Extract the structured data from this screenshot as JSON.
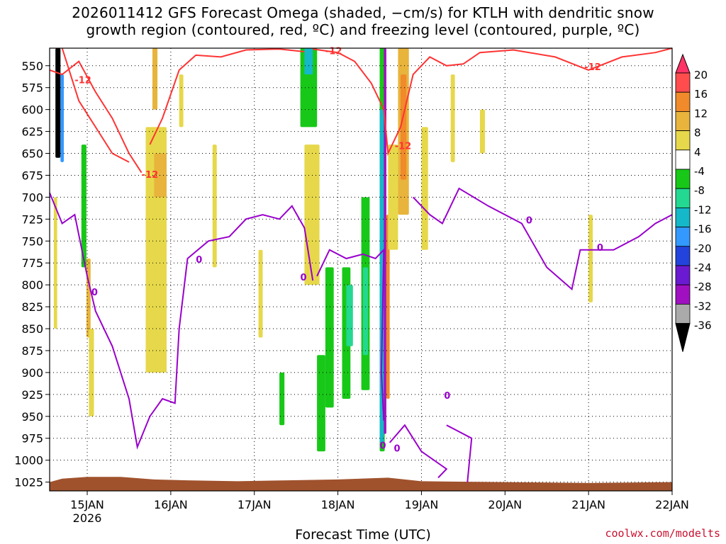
{
  "title_line1": "2026011412 GFS Forecast Omega (shaded, −cm/s) for KTLH with dendritic snow",
  "title_line2": "growth region (contoured, red, ºC) and freezing level (contoured, purple, ºC)",
  "credit": "coolwx.com/modelts",
  "colors": {
    "dendritic_contour": "#ff3333",
    "freezing_contour": "#9900cc",
    "ground": "#a0522d"
  },
  "chart_data": {
    "type": "heatmap",
    "xlabel": "Forecast Time (UTC)",
    "ylabel": "",
    "x_ticks": [
      "15JAN",
      "16JAN",
      "17JAN",
      "18JAN",
      "19JAN",
      "20JAN",
      "21JAN",
      "22JAN"
    ],
    "x_year_label": "2026",
    "y_ticks": [
      550,
      575,
      600,
      625,
      650,
      675,
      700,
      725,
      750,
      775,
      800,
      825,
      850,
      875,
      900,
      925,
      950,
      975,
      1000,
      1025
    ],
    "ylim": [
      530,
      1035
    ],
    "grid": true,
    "colorbar": {
      "levels": [
        20,
        16,
        12,
        8,
        4,
        -4,
        -8,
        -12,
        -16,
        -20,
        -24,
        -28,
        -32,
        -36
      ],
      "colors": [
        "#ff3366",
        "#ff4d4d",
        "#f08a2a",
        "#e8b43c",
        "#e6d84a",
        "#ffffff",
        "#18c818",
        "#23d890",
        "#14b8c8",
        "#3399ff",
        "#2244dd",
        "#6a1ad0",
        "#a010c0",
        "#aaaaaa",
        "#000000"
      ]
    },
    "contour_labels": {
      "dendritic": [
        "-12",
        "-12",
        "-12",
        "-12",
        "-12"
      ],
      "freezing": [
        "0",
        "0",
        "0",
        "0",
        "0",
        "0",
        "0",
        "0"
      ]
    }
  }
}
